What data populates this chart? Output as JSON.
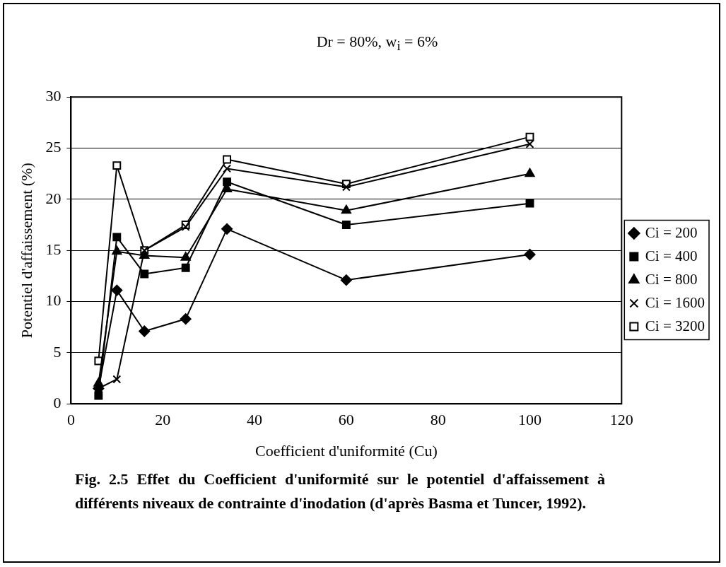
{
  "chart_data": {
    "type": "line",
    "title": "Dr = 80%,  w$_{i}$ = 6%",
    "xlabel": "Coefficient d'uniformité (Cu)",
    "ylabel": "Potentiel d'affaissement (%)",
    "x": [
      6,
      10,
      16,
      25,
      34,
      60,
      100
    ],
    "series": [
      {
        "name": "Ci = 200",
        "color": "#000000",
        "marker": "diamond",
        "values": [
          1.5,
          11.1,
          7.1,
          8.3,
          17.1,
          12.1,
          14.6
        ]
      },
      {
        "name": "Ci = 400",
        "color": "#000000",
        "marker": "square",
        "values": [
          0.8,
          16.3,
          12.7,
          13.3,
          21.7,
          17.5,
          19.6
        ]
      },
      {
        "name": "Ci = 800",
        "color": "#000000",
        "marker": "triangle",
        "values": [
          2.0,
          14.9,
          14.5,
          14.3,
          21.0,
          18.9,
          22.5
        ]
      },
      {
        "name": "Ci = 1600",
        "color": "#000000",
        "marker": "cross",
        "values": [
          1.5,
          2.4,
          15.0,
          17.3,
          23.0,
          21.2,
          25.4
        ]
      },
      {
        "name": "Ci = 3200",
        "color": "#000000",
        "marker": "square-open",
        "values": [
          4.2,
          23.3,
          15.0,
          17.5,
          23.9,
          21.5,
          26.1
        ]
      }
    ],
    "xlim": [
      0,
      120
    ],
    "xticks": [
      0,
      20,
      40,
      60,
      80,
      100,
      120
    ],
    "ylim": [
      0,
      30
    ],
    "yticks": [
      0,
      5,
      10,
      15,
      20,
      25,
      30
    ],
    "grid": "y",
    "legend": "right",
    "line_style": "solid",
    "annotations": [
      "Fig. 2.5    Effet du Coefficient d'uniformité sur le potentiel d'affaissement à différents niveaux de contrainte d'inodation (d'après Basma et Tuncer, 1992)."
    ]
  }
}
